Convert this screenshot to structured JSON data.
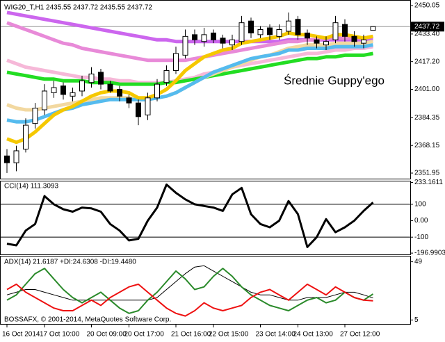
{
  "chart_data": [
    {
      "type": "candlestick",
      "title": "WIG20_T,H1  2435.55 2437.72 2435.55 2437.72",
      "annotation": "Średnie Guppy'ego",
      "ylim": [
        2351.95,
        2450.05
      ],
      "yticks": [
        2450.05,
        {
          "value": 2433.4,
          "label": "2433.40"
        },
        {
          "value": 2417.2,
          "label": "2417.20"
        },
        {
          "value": 2401,
          "label": "2401.00"
        },
        2384.35,
        2368.15,
        2351.95
      ],
      "last_price": 2437.72,
      "up_color": "#ffffff",
      "down_color": "#000000",
      "open": [
        2362,
        2358,
        2366,
        2381,
        2389,
        2399,
        2403,
        2397,
        2400,
        2405,
        2411,
        2404,
        2401,
        2396,
        2393,
        2386,
        2396,
        2405,
        2412,
        2421,
        2433,
        2429,
        2434,
        2431,
        2427,
        2429,
        2441,
        2433,
        2437,
        2432,
        2435,
        2442,
        2434,
        2430,
        2427,
        2430,
        2439,
        2432,
        2428,
        2435.55
      ],
      "high": [
        2366,
        2368,
        2384,
        2393,
        2404,
        2406,
        2405,
        2402,
        2409,
        2414,
        2413,
        2406,
        2403,
        2398,
        2395,
        2399,
        2407,
        2415,
        2426,
        2436,
        2436,
        2437,
        2436,
        2433,
        2433,
        2444,
        2443,
        2438,
        2439,
        2439,
        2446,
        2444,
        2436,
        2432,
        2432,
        2444,
        2442,
        2435,
        2433,
        2437.72
      ],
      "low": [
        2352,
        2353,
        2364,
        2378,
        2386,
        2396,
        2395,
        2394,
        2397,
        2402,
        2401,
        2399,
        2394,
        2390,
        2380,
        2383,
        2394,
        2403,
        2410,
        2419,
        2427,
        2426,
        2428,
        2425,
        2424,
        2427,
        2431,
        2431,
        2430,
        2430,
        2433,
        2430,
        2427,
        2425,
        2424,
        2428,
        2429,
        2426,
        2425,
        2435.55
      ],
      "close": [
        2358,
        2365,
        2380,
        2390,
        2400,
        2402,
        2398,
        2399,
        2406,
        2410,
        2404,
        2400,
        2397,
        2393,
        2385,
        2396,
        2404,
        2412,
        2422,
        2432,
        2430,
        2433,
        2430,
        2428,
        2430,
        2440,
        2434,
        2436,
        2433,
        2436,
        2441,
        2433,
        2431,
        2428,
        2429,
        2440,
        2432,
        2429,
        2430,
        2437.72
      ],
      "moving_averages": [
        {
          "color": "#cc66ee",
          "values": [
            2446,
            2445,
            2444,
            2443,
            2442,
            2441,
            2440,
            2439,
            2438,
            2437,
            2436,
            2435,
            2434,
            2433,
            2432,
            2431,
            2430,
            2430,
            2429,
            2429,
            2429,
            2429,
            2429,
            2429,
            2429,
            2429,
            2429,
            2429,
            2429,
            2429,
            2430,
            2430,
            2430,
            2430,
            2430,
            2430,
            2430,
            2430,
            2430,
            2430
          ]
        },
        {
          "color": "#e88ad8",
          "values": [
            2440,
            2438,
            2436,
            2434,
            2432,
            2430,
            2428,
            2427,
            2425,
            2424,
            2423,
            2422,
            2421,
            2420,
            2419,
            2418,
            2418,
            2418,
            2418,
            2418,
            2419,
            2420,
            2421,
            2422,
            2423,
            2424,
            2425,
            2426,
            2427,
            2428,
            2429,
            2429,
            2430,
            2430,
            2431,
            2431,
            2431,
            2431,
            2431,
            2432
          ]
        },
        {
          "color": "#f6b8d8",
          "values": [
            2418,
            2416,
            2414,
            2413,
            2412,
            2411,
            2410,
            2409,
            2408,
            2408,
            2407,
            2407,
            2406,
            2406,
            2405,
            2405,
            2405,
            2405,
            2406,
            2407,
            2408,
            2410,
            2411,
            2412,
            2414,
            2415,
            2416,
            2417,
            2418,
            2419,
            2420,
            2421,
            2422,
            2422,
            2423,
            2424,
            2424,
            2425,
            2425,
            2426
          ]
        },
        {
          "color": "#22dd22",
          "values": [
            2411,
            2410,
            2409,
            2408,
            2407,
            2407,
            2406,
            2406,
            2406,
            2405,
            2405,
            2405,
            2404,
            2404,
            2404,
            2404,
            2404,
            2405,
            2405,
            2406,
            2407,
            2408,
            2409,
            2410,
            2411,
            2412,
            2413,
            2414,
            2415,
            2416,
            2417,
            2418,
            2419,
            2419,
            2420,
            2420,
            2421,
            2421,
            2421,
            2422
          ]
        },
        {
          "color": "#f2d8a0",
          "values": [
            2392,
            2390,
            2389,
            2389,
            2390,
            2391,
            2392,
            2393,
            2394,
            2395,
            2396,
            2396,
            2396,
            2396,
            2395,
            2395,
            2396,
            2397,
            2399,
            2402,
            2405,
            2408,
            2410,
            2412,
            2414,
            2416,
            2418,
            2420,
            2421,
            2423,
            2425,
            2426,
            2427,
            2427,
            2427,
            2428,
            2428,
            2428,
            2428,
            2429
          ]
        },
        {
          "color": "#55bbee",
          "values": [
            2383,
            2382,
            2382,
            2383,
            2385,
            2387,
            2389,
            2390,
            2392,
            2393,
            2394,
            2395,
            2395,
            2395,
            2395,
            2395,
            2396,
            2397,
            2399,
            2402,
            2405,
            2408,
            2411,
            2413,
            2415,
            2417,
            2419,
            2420,
            2421,
            2422,
            2424,
            2424,
            2425,
            2425,
            2425,
            2426,
            2426,
            2426,
            2426,
            2427
          ]
        },
        {
          "color": "#f5c800",
          "values": [
            2372,
            2370,
            2372,
            2376,
            2381,
            2386,
            2389,
            2391,
            2394,
            2397,
            2399,
            2400,
            2400,
            2399,
            2396,
            2396,
            2398,
            2401,
            2406,
            2412,
            2416,
            2420,
            2422,
            2424,
            2425,
            2428,
            2429,
            2430,
            2431,
            2432,
            2434,
            2433,
            2433,
            2432,
            2431,
            2433,
            2433,
            2432,
            2431,
            2432
          ]
        }
      ]
    },
    {
      "type": "line",
      "title": "CCI(14) 111.3093",
      "ylim": [
        -205,
        235
      ],
      "yticks": [
        233.1611,
        100,
        {
          "value": 0,
          "label": "0.00"
        },
        -100,
        -196.9903
      ],
      "series": [
        {
          "color": "#000000",
          "values": [
            -140,
            -150,
            -60,
            -20,
            150,
            100,
            70,
            55,
            80,
            75,
            55,
            -20,
            -60,
            -120,
            -110,
            0,
            80,
            220,
            170,
            130,
            100,
            90,
            80,
            60,
            160,
            200,
            40,
            -20,
            -40,
            0,
            120,
            40,
            -160,
            -100,
            10,
            -70,
            -40,
            0,
            60,
            111.3093
          ]
        }
      ]
    },
    {
      "type": "line",
      "title": "ADX(14) 21.6187 +DI:24.6308 -DI:19.4480",
      "footer": "BOSSAFX, © 2001-2014, MetaQuotes Software Corp.",
      "ylim": [
        2,
        53
      ],
      "yticks": [
        49,
        5
      ],
      "series": [
        {
          "color": "#000000",
          "values": [
            24,
            26,
            28,
            28,
            26,
            24,
            22,
            20,
            20,
            20,
            20,
            20,
            20,
            20,
            20,
            20,
            22,
            28,
            34,
            40,
            45,
            46,
            42,
            38,
            34,
            30,
            26,
            24,
            24,
            22,
            20,
            20,
            22,
            22,
            22,
            24,
            26,
            26,
            24,
            21.6187
          ]
        },
        {
          "color": "#2a8a2a",
          "values": [
            20,
            24,
            32,
            40,
            44,
            36,
            28,
            22,
            18,
            22,
            26,
            20,
            14,
            10,
            12,
            20,
            26,
            34,
            42,
            36,
            28,
            30,
            38,
            44,
            38,
            30,
            24,
            20,
            16,
            14,
            12,
            16,
            20,
            22,
            18,
            20,
            26,
            22,
            20,
            24.6308
          ]
        },
        {
          "color": "#ee1111",
          "values": [
            28,
            32,
            26,
            22,
            18,
            14,
            12,
            12,
            16,
            20,
            16,
            22,
            26,
            30,
            32,
            26,
            20,
            14,
            10,
            8,
            12,
            18,
            14,
            12,
            14,
            16,
            22,
            26,
            28,
            24,
            20,
            26,
            32,
            28,
            24,
            30,
            26,
            22,
            20,
            19.448
          ]
        }
      ],
      "xticks": [
        {
          "value": 0,
          "label": "16 Oct 2014"
        },
        {
          "value": 4,
          "label": "17 Oct 10:00"
        },
        {
          "value": 9,
          "label": "20 Oct 09:00"
        },
        {
          "value": 13,
          "label": "20 Oct 17:00"
        },
        {
          "value": 18,
          "label": "21 Oct 16:00"
        },
        {
          "value": 22,
          "label": "22 Oct 15:00"
        },
        {
          "value": 27,
          "label": "23 Oct 14:00"
        },
        {
          "value": 31,
          "label": "24 Oct 13:00"
        },
        {
          "value": 36,
          "label": "27 Oct 12:00"
        }
      ]
    }
  ]
}
